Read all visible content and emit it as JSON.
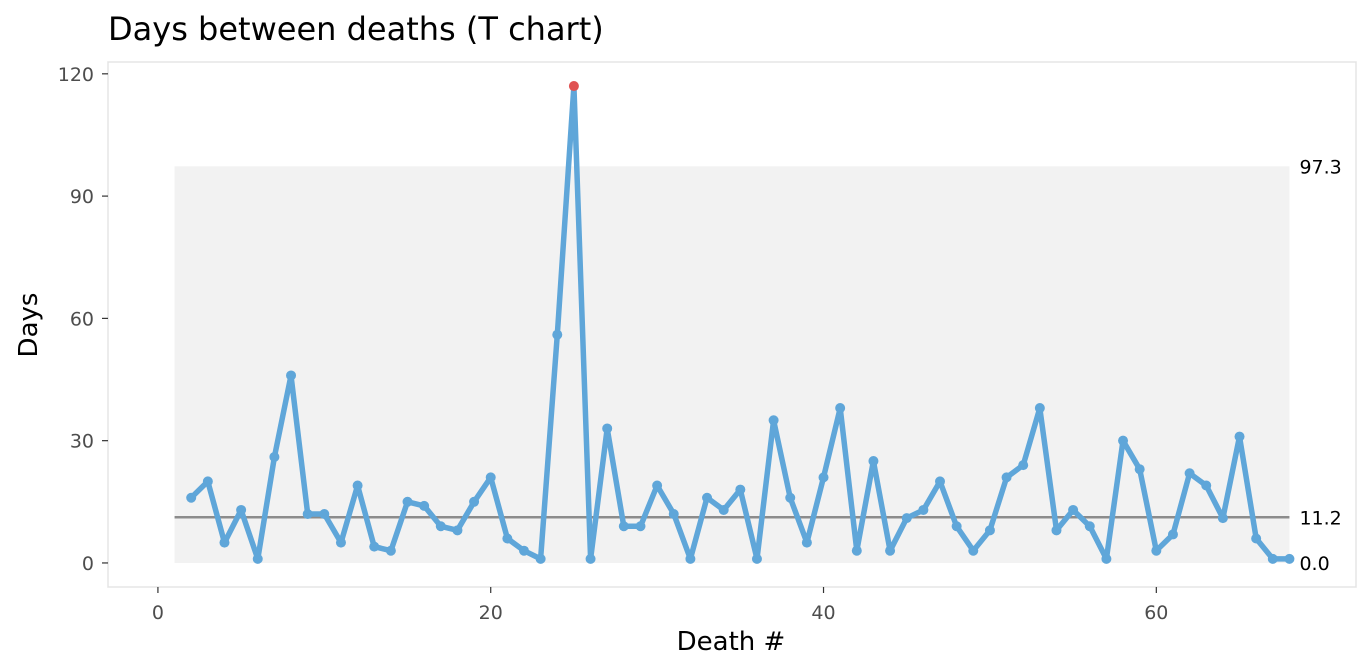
{
  "chart_data": {
    "type": "line",
    "title": "Days between deaths (T chart)",
    "xlabel": "Death #",
    "ylabel": "Days",
    "xlim": [
      -3,
      72
    ],
    "ylim": [
      -5.9,
      122.9
    ],
    "xticks": [
      0,
      20,
      40,
      60
    ],
    "yticks": [
      0,
      30,
      60,
      90,
      120
    ],
    "grid": false,
    "legend": "none",
    "control_limits": {
      "x_range": [
        1,
        68
      ],
      "center": 11.2,
      "center_label": "11.2",
      "upper": 97.3,
      "upper_label": "97.3",
      "lower": 0,
      "lower_label": "0.0"
    },
    "colors": {
      "line": "#5fa6d9",
      "signal": "#e05252",
      "center_line": "#8c8c8c",
      "limit_band": "#f2f2f2",
      "panel_border": "#e5e5e5"
    },
    "series": [
      {
        "x": [
          2,
          3,
          4,
          5,
          6,
          7,
          8,
          9,
          10,
          11,
          12,
          13,
          14,
          15,
          16,
          17,
          18,
          19,
          20,
          21,
          22,
          23,
          24,
          25,
          26,
          27,
          28,
          29,
          30,
          31,
          32,
          33,
          34,
          35,
          36,
          37,
          38,
          39,
          40,
          41,
          42,
          43,
          44,
          45,
          46,
          47,
          48,
          49,
          50,
          51,
          52,
          53,
          54,
          55,
          56,
          57,
          58,
          59,
          60,
          61,
          62,
          63,
          64,
          65,
          66,
          67,
          68
        ],
        "values": [
          16,
          20,
          5,
          13,
          1,
          26,
          46,
          12,
          12,
          5,
          19,
          4,
          3,
          15,
          14,
          9,
          8,
          15,
          21,
          6,
          3,
          1,
          56,
          117,
          1,
          33,
          9,
          9,
          19,
          12,
          1,
          16,
          13,
          18,
          1,
          35,
          16,
          5,
          21,
          38,
          3,
          25,
          3,
          11,
          13,
          20,
          9,
          3,
          8,
          21,
          24,
          38,
          8,
          13,
          9,
          1,
          30,
          23,
          3,
          7,
          22,
          19,
          11,
          31,
          6,
          1,
          1
        ],
        "signal_indices": [
          23
        ]
      }
    ]
  }
}
